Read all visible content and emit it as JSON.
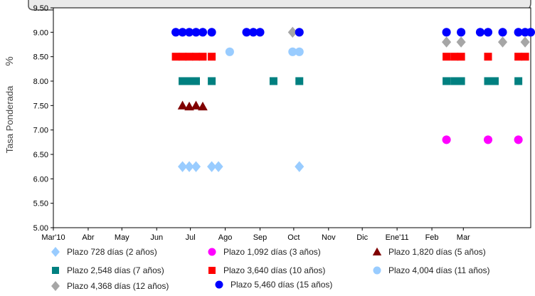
{
  "chart_data": {
    "type": "scatter",
    "title": "",
    "ylabel": "Tasa Ponderada",
    "ylabel_unit": "%",
    "ylim": [
      5.0,
      9.5
    ],
    "yticks": [
      5.0,
      5.5,
      6.0,
      6.5,
      7.0,
      7.5,
      8.0,
      8.5,
      9.0,
      9.5
    ],
    "ytick_labels": [
      "5.00",
      "5.50",
      "6.00",
      "6.50",
      "7.00",
      "7.50",
      "8.00",
      "8.50",
      "9.00",
      "9.50"
    ],
    "xlim": [
      "2010-03-01",
      "2011-04-30"
    ],
    "xticks": [
      {
        "date": "2010-03-01",
        "label": "Mar'10"
      },
      {
        "date": "2010-04-01",
        "label": "Abr"
      },
      {
        "date": "2010-05-01",
        "label": "May"
      },
      {
        "date": "2010-06-01",
        "label": "Jun"
      },
      {
        "date": "2010-07-01",
        "label": "Jul"
      },
      {
        "date": "2010-08-01",
        "label": "Ago"
      },
      {
        "date": "2010-09-01",
        "label": "Sep"
      },
      {
        "date": "2010-10-01",
        "label": "Oct"
      },
      {
        "date": "2010-11-01",
        "label": "Nov"
      },
      {
        "date": "2010-12-01",
        "label": "Dic"
      },
      {
        "date": "2011-01-01",
        "label": "Ene'11"
      },
      {
        "date": "2011-02-01",
        "label": "Feb"
      },
      {
        "date": "2011-03-01",
        "label": "Mar"
      }
    ],
    "grid": false,
    "legend_position": "bottom",
    "series": [
      {
        "name": "Plazo 728 días (2 años)",
        "marker": "diamond",
        "color": "#99ccff",
        "points": [
          [
            "2010-06-24",
            6.25
          ],
          [
            "2010-06-30",
            6.25
          ],
          [
            "2010-07-06",
            6.25
          ],
          [
            "2010-07-20",
            6.25
          ],
          [
            "2010-07-26",
            6.25
          ],
          [
            "2010-10-06",
            6.25
          ]
        ]
      },
      {
        "name": "Plazo 1,092 días (3 años)",
        "marker": "circle",
        "color": "#ff00ff",
        "points": [
          [
            "2011-02-14",
            6.8
          ],
          [
            "2011-03-23",
            6.8
          ],
          [
            "2011-04-19",
            6.8
          ]
        ]
      },
      {
        "name": "Plazo 1,820 días (5 años)",
        "marker": "triangle",
        "color": "#800000",
        "points": [
          [
            "2010-06-24",
            7.5
          ],
          [
            "2010-06-30",
            7.48
          ],
          [
            "2010-07-06",
            7.5
          ],
          [
            "2010-07-12",
            7.48
          ]
        ]
      },
      {
        "name": "Plazo 2,548 días (7 años)",
        "marker": "square",
        "color": "#008080",
        "points": [
          [
            "2010-06-24",
            8.0
          ],
          [
            "2010-06-30",
            8.0
          ],
          [
            "2010-07-06",
            8.0
          ],
          [
            "2010-07-20",
            8.0
          ],
          [
            "2010-09-13",
            8.0
          ],
          [
            "2010-10-06",
            8.0
          ],
          [
            "2011-02-14",
            8.0
          ],
          [
            "2011-02-21",
            8.0
          ],
          [
            "2011-02-27",
            8.0
          ],
          [
            "2011-03-23",
            8.0
          ],
          [
            "2011-03-29",
            8.0
          ],
          [
            "2011-04-19",
            8.0
          ]
        ]
      },
      {
        "name": "Plazo 3,640 días (10 años)",
        "marker": "square",
        "color": "#ff0000",
        "points": [
          [
            "2010-06-18",
            8.5
          ],
          [
            "2010-06-24",
            8.5
          ],
          [
            "2010-06-30",
            8.5
          ],
          [
            "2010-07-06",
            8.5
          ],
          [
            "2010-07-12",
            8.5
          ],
          [
            "2010-07-20",
            8.5
          ],
          [
            "2011-02-14",
            8.5
          ],
          [
            "2011-02-21",
            8.5
          ],
          [
            "2011-02-27",
            8.5
          ],
          [
            "2011-03-23",
            8.5
          ],
          [
            "2011-04-19",
            8.5
          ],
          [
            "2011-04-25",
            8.5
          ]
        ]
      },
      {
        "name": "Plazo 4,004 días (11 años)",
        "marker": "circle",
        "color": "#99ccff",
        "points": [
          [
            "2010-08-05",
            8.6
          ],
          [
            "2010-09-30",
            8.6
          ],
          [
            "2010-10-06",
            8.6
          ]
        ]
      },
      {
        "name": "Plazo 4,368 días (12 años)",
        "marker": "diamond",
        "color": "#a6a6a6",
        "points": [
          [
            "2010-09-30",
            9.0
          ],
          [
            "2011-02-14",
            8.8
          ],
          [
            "2011-02-27",
            8.8
          ],
          [
            "2011-04-05",
            8.8
          ],
          [
            "2011-04-25",
            8.8
          ]
        ]
      },
      {
        "name": "Plazo 5,460 días (15 años)",
        "marker": "circle",
        "color": "#0000ff",
        "points": [
          [
            "2010-06-18",
            9.0
          ],
          [
            "2010-06-24",
            9.0
          ],
          [
            "2010-06-30",
            9.0
          ],
          [
            "2010-07-06",
            9.0
          ],
          [
            "2010-07-12",
            9.0
          ],
          [
            "2010-07-20",
            9.0
          ],
          [
            "2010-08-20",
            9.0
          ],
          [
            "2010-08-26",
            9.0
          ],
          [
            "2010-09-01",
            9.0
          ],
          [
            "2010-10-06",
            9.0
          ],
          [
            "2011-02-14",
            9.0
          ],
          [
            "2011-02-27",
            9.0
          ],
          [
            "2011-03-16",
            9.0
          ],
          [
            "2011-03-23",
            9.0
          ],
          [
            "2011-04-05",
            9.0
          ],
          [
            "2011-04-19",
            9.0
          ],
          [
            "2011-04-25",
            9.0
          ],
          [
            "2011-04-30",
            9.0
          ]
        ]
      }
    ]
  }
}
